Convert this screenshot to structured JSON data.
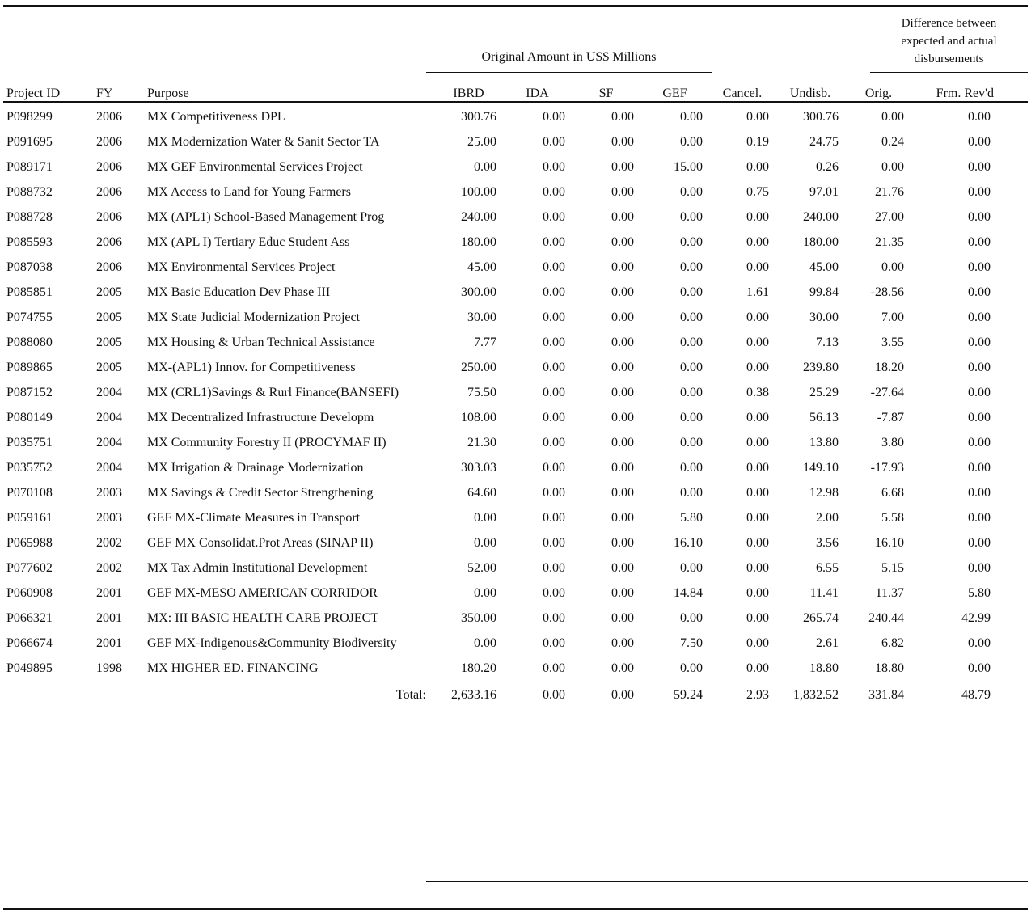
{
  "header": {
    "group_title": "Original Amount in US$ Millions",
    "diff_title_lines": [
      "Difference between",
      "expected and actual",
      "disbursements"
    ]
  },
  "columns": [
    "Project ID",
    "FY",
    "Purpose",
    "IBRD",
    "IDA",
    "SF",
    "GEF",
    "Cancel.",
    "Undisb.",
    "Orig.",
    "Frm. Rev'd"
  ],
  "rows": [
    [
      "P098299",
      "2006",
      "MX Competitiveness DPL",
      "300.76",
      "0.00",
      "0.00",
      "0.00",
      "0.00",
      "300.76",
      "0.00",
      "0.00"
    ],
    [
      "P091695",
      "2006",
      "MX Modernization Water & Sanit Sector TA",
      "25.00",
      "0.00",
      "0.00",
      "0.00",
      "0.19",
      "24.75",
      "0.24",
      "0.00"
    ],
    [
      "P089171",
      "2006",
      "MX GEF Environmental Services Project",
      "0.00",
      "0.00",
      "0.00",
      "15.00",
      "0.00",
      "0.26",
      "0.00",
      "0.00"
    ],
    [
      "P088732",
      "2006",
      "MX Access to Land for Young Farmers",
      "100.00",
      "0.00",
      "0.00",
      "0.00",
      "0.75",
      "97.01",
      "21.76",
      "0.00"
    ],
    [
      "P088728",
      "2006",
      "MX (APL1) School-Based Management Prog",
      "240.00",
      "0.00",
      "0.00",
      "0.00",
      "0.00",
      "240.00",
      "27.00",
      "0.00"
    ],
    [
      "P085593",
      "2006",
      "MX (APL I) Tertiary Educ Student Ass",
      "180.00",
      "0.00",
      "0.00",
      "0.00",
      "0.00",
      "180.00",
      "21.35",
      "0.00"
    ],
    [
      "P087038",
      "2006",
      "MX Environmental Services Project",
      "45.00",
      "0.00",
      "0.00",
      "0.00",
      "0.00",
      "45.00",
      "0.00",
      "0.00"
    ],
    [
      "P085851",
      "2005",
      "MX  Basic Education Dev Phase III",
      "300.00",
      "0.00",
      "0.00",
      "0.00",
      "1.61",
      "99.84",
      "-28.56",
      "0.00"
    ],
    [
      "P074755",
      "2005",
      "MX State Judicial Modernization Project",
      "30.00",
      "0.00",
      "0.00",
      "0.00",
      "0.00",
      "30.00",
      "7.00",
      "0.00"
    ],
    [
      "P088080",
      "2005",
      "MX Housing & Urban Technical Assistance",
      "7.77",
      "0.00",
      "0.00",
      "0.00",
      "0.00",
      "7.13",
      "3.55",
      "0.00"
    ],
    [
      "P089865",
      "2005",
      "MX-(APL1) Innov. for Competitiveness",
      "250.00",
      "0.00",
      "0.00",
      "0.00",
      "0.00",
      "239.80",
      "18.20",
      "0.00"
    ],
    [
      "P087152",
      "2004",
      "MX (CRL1)Savings & Rurl Finance(BANSEFI)",
      "75.50",
      "0.00",
      "0.00",
      "0.00",
      "0.38",
      "25.29",
      "-27.64",
      "0.00"
    ],
    [
      "P080149",
      "2004",
      "MX Decentralized Infrastructure Developm",
      "108.00",
      "0.00",
      "0.00",
      "0.00",
      "0.00",
      "56.13",
      "-7.87",
      "0.00"
    ],
    [
      "P035751",
      "2004",
      "MX Community Forestry II (PROCYMAF II)",
      "21.30",
      "0.00",
      "0.00",
      "0.00",
      "0.00",
      "13.80",
      "3.80",
      "0.00"
    ],
    [
      "P035752",
      "2004",
      "MX Irrigation & Drainage Modernization",
      "303.03",
      "0.00",
      "0.00",
      "0.00",
      "0.00",
      "149.10",
      "-17.93",
      "0.00"
    ],
    [
      "P070108",
      "2003",
      "MX Savings & Credit Sector Strengthening",
      "64.60",
      "0.00",
      "0.00",
      "0.00",
      "0.00",
      "12.98",
      "6.68",
      "0.00"
    ],
    [
      "P059161",
      "2003",
      "GEF MX-Climate Measures in Transport",
      "0.00",
      "0.00",
      "0.00",
      "5.80",
      "0.00",
      "2.00",
      "5.58",
      "0.00"
    ],
    [
      "P065988",
      "2002",
      "GEF MX Consolidat.Prot Areas (SINAP II)",
      "0.00",
      "0.00",
      "0.00",
      "16.10",
      "0.00",
      "3.56",
      "16.10",
      "0.00"
    ],
    [
      "P077602",
      "2002",
      "MX Tax Admin Institutional Development",
      "52.00",
      "0.00",
      "0.00",
      "0.00",
      "0.00",
      "6.55",
      "5.15",
      "0.00"
    ],
    [
      "P060908",
      "2001",
      "GEF MX-MESO AMERICAN CORRIDOR",
      "0.00",
      "0.00",
      "0.00",
      "14.84",
      "0.00",
      "11.41",
      "11.37",
      "5.80"
    ],
    [
      "P066321",
      "2001",
      "MX: III BASIC HEALTH CARE PROJECT",
      "350.00",
      "0.00",
      "0.00",
      "0.00",
      "0.00",
      "265.74",
      "240.44",
      "42.99"
    ],
    [
      "P066674",
      "2001",
      "GEF MX-Indigenous&Community Biodiversity",
      "0.00",
      "0.00",
      "0.00",
      "7.50",
      "0.00",
      "2.61",
      "6.82",
      "0.00"
    ],
    [
      "P049895",
      "1998",
      "MX HIGHER ED. FINANCING",
      "180.20",
      "0.00",
      "0.00",
      "0.00",
      "0.00",
      "18.80",
      "18.80",
      "0.00"
    ]
  ],
  "total": {
    "label": "Total:",
    "values": [
      "2,633.16",
      "0.00",
      "0.00",
      "59.24",
      "2.93",
      "1,832.52",
      "331.84",
      "48.79"
    ]
  }
}
